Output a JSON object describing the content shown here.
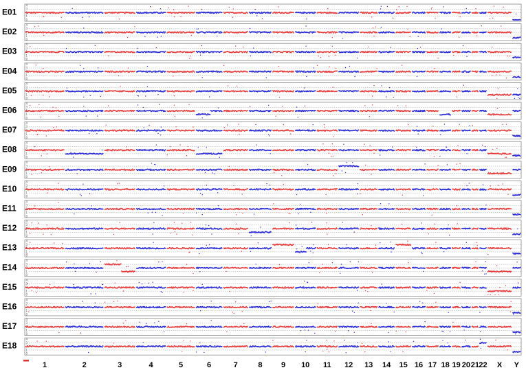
{
  "chart_data": {
    "type": "scatter",
    "title": "",
    "xlabel": "",
    "ylabel": "",
    "samples": [
      "E01",
      "E02",
      "E03",
      "E04",
      "E05",
      "E06",
      "E07",
      "E08",
      "E09",
      "E10",
      "E11",
      "E12",
      "E13",
      "E14",
      "E15",
      "E16",
      "E17",
      "E18"
    ],
    "chromosomes": [
      "1",
      "2",
      "3",
      "4",
      "5",
      "6",
      "7",
      "8",
      "9",
      "10",
      "11",
      "12",
      "13",
      "14",
      "15",
      "16",
      "17",
      "18",
      "19",
      "20",
      "21",
      "22",
      "X",
      "Y"
    ],
    "chromosome_sizes_mb": [
      249,
      243,
      198,
      190,
      181,
      171,
      159,
      146,
      141,
      135,
      135,
      133,
      115,
      107,
      102,
      90,
      81,
      78,
      59,
      63,
      48,
      51,
      155,
      57
    ],
    "y_ticks": [
      0,
      1,
      2,
      3,
      4
    ],
    "ylim": [
      0,
      4
    ],
    "baseline_copy_number": 2,
    "colors": {
      "odd": "#e83a3a",
      "even": "#2a2ad6",
      "grid": "#a0a0a0",
      "marker": "#e03030"
    },
    "grid": true,
    "copy_number_events": [
      {
        "sample": "E01",
        "chromosome": "X",
        "value": 2,
        "note": ""
      },
      {
        "sample": "E01",
        "chromosome": "Y",
        "value": 0,
        "note": ""
      },
      {
        "sample": "E02",
        "chromosome": "Y",
        "value": 0.5,
        "note": ""
      },
      {
        "sample": "E03",
        "chromosome": "Y",
        "value": 0.5,
        "note": ""
      },
      {
        "sample": "E04",
        "chromosome": "Y",
        "value": 0.5,
        "note": ""
      },
      {
        "sample": "E05",
        "chromosome": "X",
        "value": 1,
        "note": ""
      },
      {
        "sample": "E05",
        "chromosome": "Y",
        "value": 1,
        "note": ""
      },
      {
        "sample": "E06",
        "chromosome": "6",
        "value": 1,
        "note": "partial"
      },
      {
        "sample": "E06",
        "chromosome": "18",
        "value": 1,
        "note": ""
      },
      {
        "sample": "E06",
        "chromosome": "X",
        "value": 1,
        "note": ""
      },
      {
        "sample": "E07",
        "chromosome": "Y",
        "value": 0.5,
        "note": ""
      },
      {
        "sample": "E08",
        "chromosome": "2",
        "value": 1,
        "note": ""
      },
      {
        "sample": "E08",
        "chromosome": "6",
        "value": 1,
        "note": ""
      },
      {
        "sample": "E08",
        "chromosome": "X",
        "value": 1,
        "note": ""
      },
      {
        "sample": "E08",
        "chromosome": "Y",
        "value": 0.5,
        "note": ""
      },
      {
        "sample": "E09",
        "chromosome": "12",
        "value": 3,
        "note": ""
      },
      {
        "sample": "E09",
        "chromosome": "X",
        "value": 1,
        "note": ""
      },
      {
        "sample": "E10",
        "chromosome": "Y",
        "value": 0.5,
        "note": ""
      },
      {
        "sample": "E11",
        "chromosome": "Y",
        "value": 0.5,
        "note": ""
      },
      {
        "sample": "E12",
        "chromosome": "8",
        "value": 1,
        "note": ""
      },
      {
        "sample": "E12",
        "chromosome": "Y",
        "value": 0.5,
        "note": ""
      },
      {
        "sample": "E13",
        "chromosome": "9",
        "value": 3,
        "note": ""
      },
      {
        "sample": "E13",
        "chromosome": "15",
        "value": 3,
        "note": ""
      },
      {
        "sample": "E13",
        "chromosome": "10",
        "value": 1,
        "note": "partial"
      },
      {
        "sample": "E13",
        "chromosome": "Y",
        "value": 0.5,
        "note": ""
      },
      {
        "sample": "E14",
        "chromosome": "3",
        "value": 3,
        "note": "partial"
      },
      {
        "sample": "E14",
        "chromosome": "3",
        "value": 1,
        "note": "partial"
      },
      {
        "sample": "E14",
        "chromosome": "X",
        "value": 1,
        "note": ""
      },
      {
        "sample": "E15",
        "chromosome": "X",
        "value": 1,
        "note": ""
      },
      {
        "sample": "E16",
        "chromosome": "Y",
        "value": 0.5,
        "note": ""
      },
      {
        "sample": "E17",
        "chromosome": "Y",
        "value": 0.5,
        "note": ""
      },
      {
        "sample": "E18",
        "chromosome": "22",
        "value": 3,
        "note": ""
      },
      {
        "sample": "E18",
        "chromosome": "Y",
        "value": 0.5,
        "note": ""
      }
    ]
  }
}
